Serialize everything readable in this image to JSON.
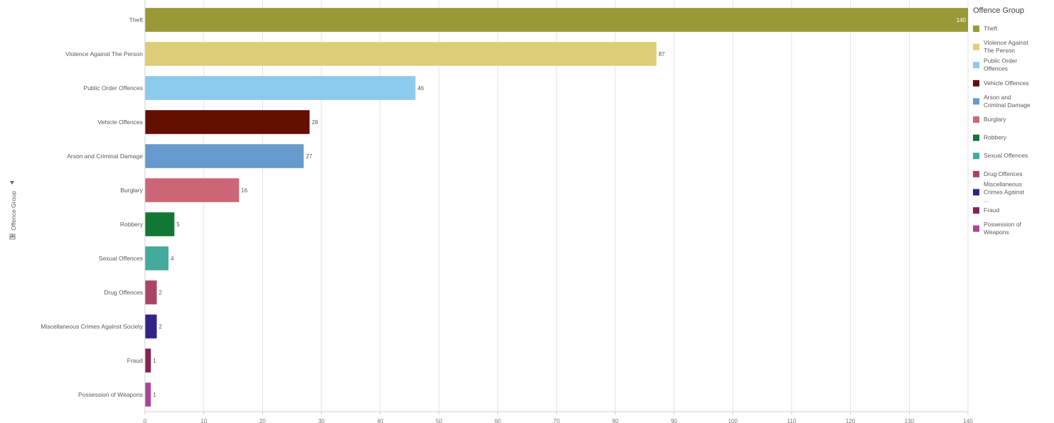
{
  "chart_data": {
    "type": "bar",
    "orientation": "horizontal",
    "title": "",
    "ylabel": "Offence Group",
    "xlabel": "",
    "categories": [
      "Theft",
      "Violence Against The Person",
      "Public Order Offences",
      "Vehicle Offences",
      "Arson and Criminal Damage",
      "Burglary",
      "Robbery",
      "Sexual Offences",
      "Drug Offences",
      "Miscellaneous Crimes Against Society",
      "Fraud",
      "Possession of Weapons"
    ],
    "values": [
      140,
      87,
      46,
      28,
      27,
      16,
      5,
      4,
      2,
      2,
      1,
      1
    ],
    "colors": [
      "#999936",
      "#decd78",
      "#8bcbeb",
      "#630f00",
      "#6699cc",
      "#cc6677",
      "#117733",
      "#44aa99",
      "#aa4466",
      "#332288",
      "#882255",
      "#aa4499"
    ],
    "xlim": [
      0,
      140
    ],
    "xticks": [
      0,
      10,
      20,
      30,
      40,
      50,
      60,
      70,
      80,
      90,
      100,
      110,
      120,
      130,
      140
    ],
    "grid": true,
    "legend": {
      "title": "Offence Group",
      "placement": "right",
      "entries": [
        "Theft",
        "Violence Against The Person",
        "Public Order Offences",
        "Vehicle Offences",
        "Arson and Criminal Damage",
        "Burglary",
        "Robbery",
        "Sexual Offences",
        "Drug Offences",
        "Miscellaneous Crimes Against ...",
        "Fraud",
        "Possession of Weapons"
      ]
    }
  }
}
